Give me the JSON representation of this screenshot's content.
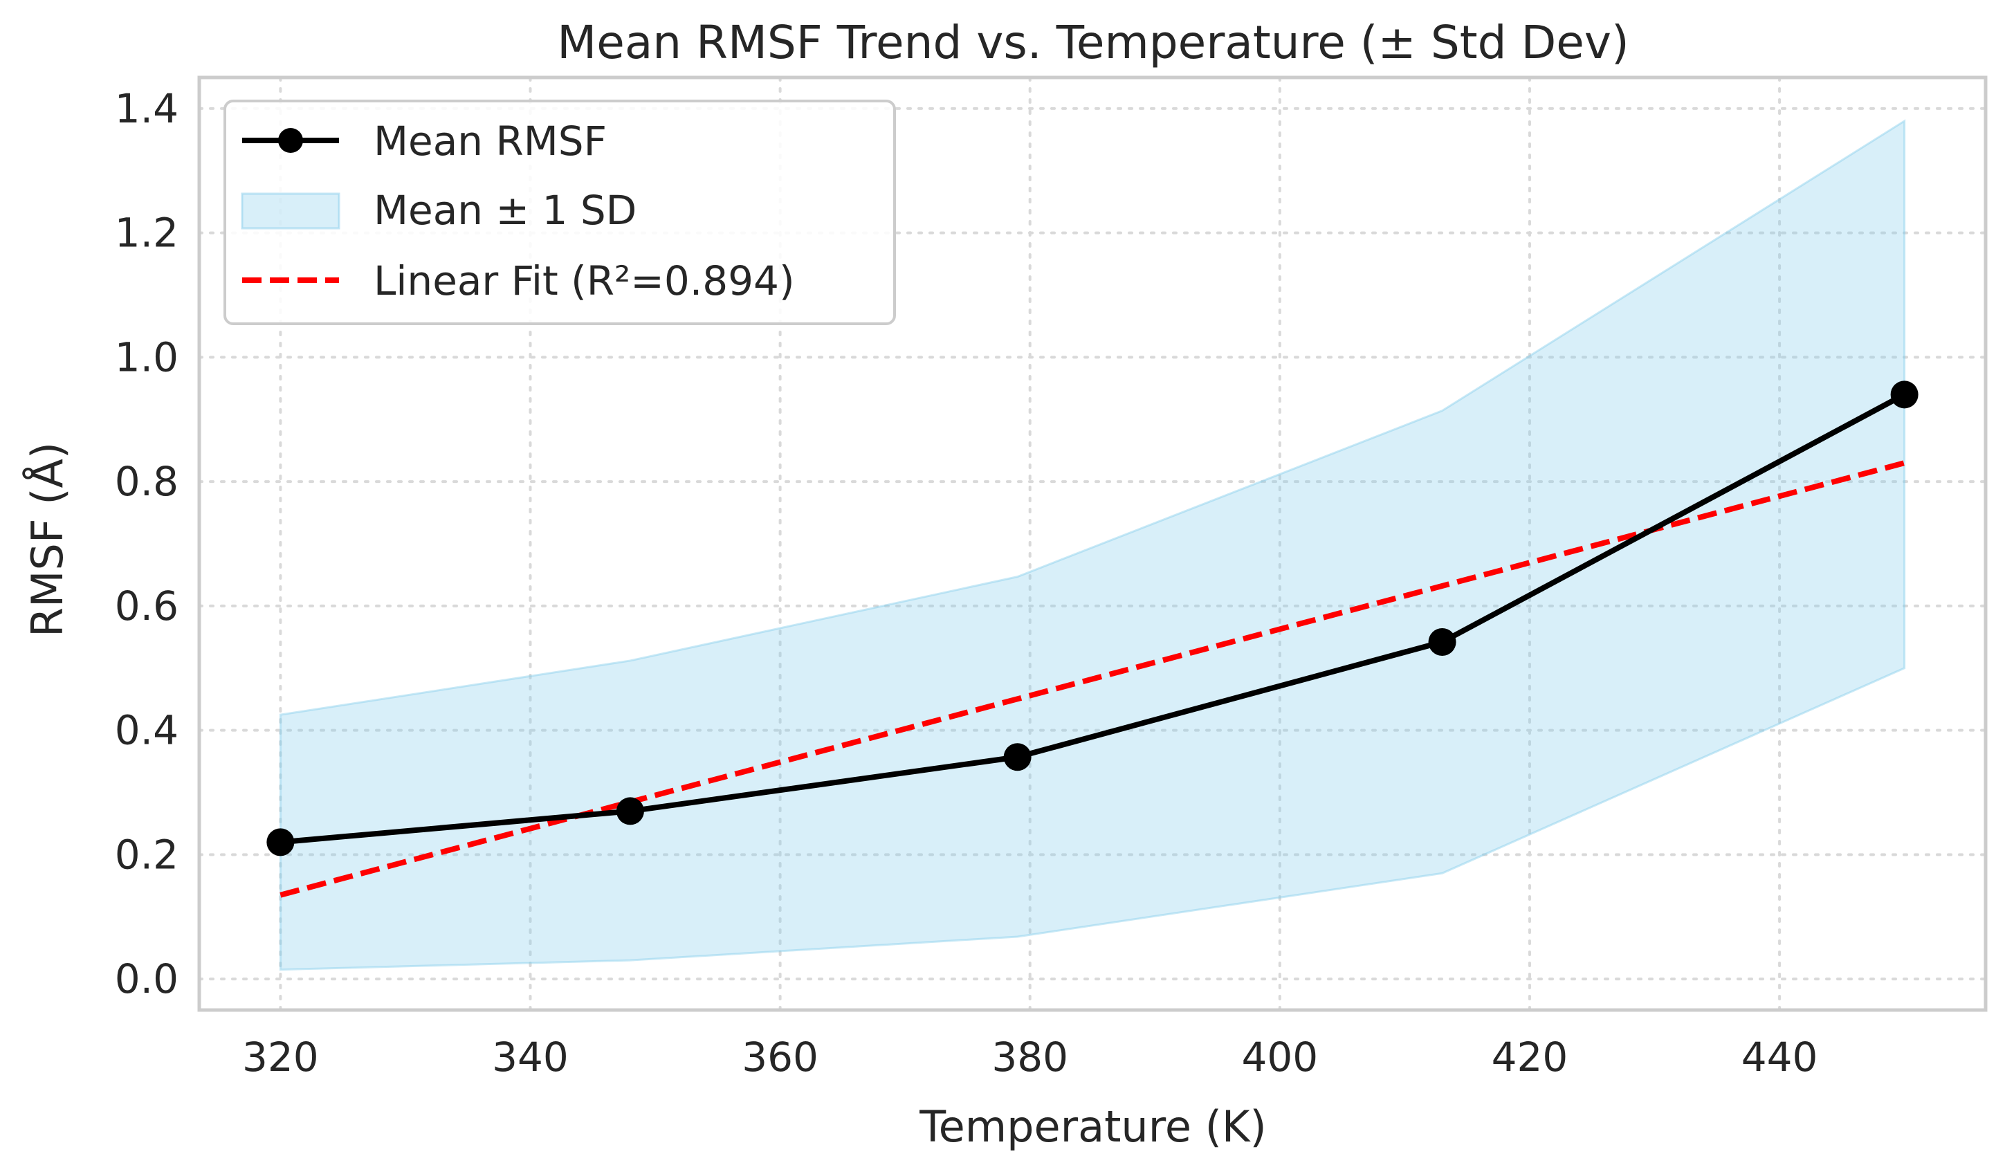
{
  "chart_data": {
    "type": "line",
    "title": "Mean RMSF Trend vs. Temperature (± Std Dev)",
    "xlabel": "Temperature (K)",
    "ylabel": "RMSF (Å)",
    "xlim": [
      313.5,
      456.5
    ],
    "ylim": [
      -0.05,
      1.45
    ],
    "xticks": [
      320,
      340,
      360,
      380,
      400,
      420,
      440
    ],
    "yticks": [
      0.0,
      0.2,
      0.4,
      0.6,
      0.8,
      1.0,
      1.2,
      1.4
    ],
    "xtick_labels": [
      "320",
      "340",
      "360",
      "380",
      "400",
      "420",
      "440"
    ],
    "ytick_labels": [
      "0.0",
      "0.2",
      "0.4",
      "0.6",
      "0.8",
      "1.0",
      "1.2",
      "1.4"
    ],
    "grid": true,
    "legend_position": "top-left",
    "x": [
      320,
      348,
      379,
      413,
      450
    ],
    "series": [
      {
        "name": "Mean RMSF",
        "kind": "line-marker",
        "color": "#000000",
        "values": [
          0.22,
          0.27,
          0.357,
          0.542,
          0.94
        ]
      },
      {
        "name": "Mean ± 1 SD",
        "kind": "band",
        "color": "#87ceeb",
        "lower": [
          0.015,
          0.03,
          0.068,
          0.17,
          0.5
        ],
        "upper": [
          0.425,
          0.512,
          0.647,
          0.914,
          1.38
        ]
      },
      {
        "name": "Linear Fit (R²=0.894)",
        "kind": "dashed-line",
        "color": "#ff0000",
        "x": [
          320,
          450
        ],
        "values": [
          0.135,
          0.83
        ]
      }
    ]
  }
}
